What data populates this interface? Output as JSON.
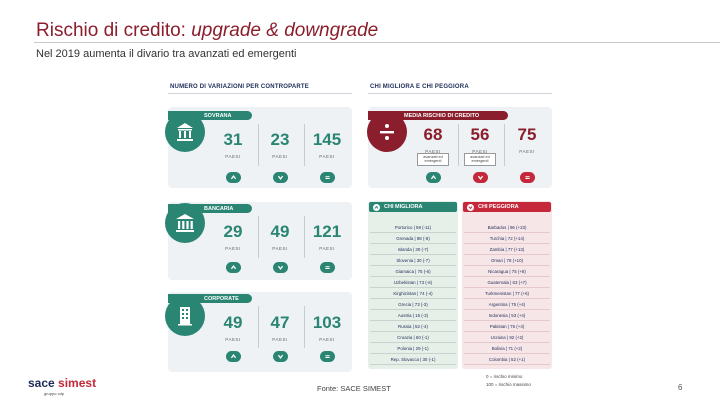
{
  "header": {
    "title_main": "Rischio di credito: ",
    "title_italic": "upgrade & downgrade",
    "subtitle": "Nel 2019 aumenta il divario tra avanzati ed emergenti"
  },
  "colors": {
    "brand_red": "#8b1e2c",
    "teal": "#2a8573",
    "navy": "#1c2b57",
    "panel": "#eef2f5"
  },
  "left_section": {
    "heading": "NUMERO DI VARIAZIONI PER CONTROPARTE",
    "cards": [
      {
        "label": "SOVRANA",
        "icon": "government-building-icon",
        "stats": [
          {
            "value": "31",
            "label": "PAESI",
            "badge": "up"
          },
          {
            "value": "23",
            "label": "PAESI",
            "badge": "down"
          },
          {
            "value": "145",
            "label": "PAESI",
            "badge": "equal"
          }
        ]
      },
      {
        "label": "BANCARIA",
        "icon": "bank-icon",
        "stats": [
          {
            "value": "29",
            "label": "PAESI",
            "badge": "up"
          },
          {
            "value": "49",
            "label": "PAESI",
            "badge": "down"
          },
          {
            "value": "121",
            "label": "PAESI",
            "badge": "equal"
          }
        ]
      },
      {
        "label": "CORPORATE",
        "icon": "office-building-icon",
        "stats": [
          {
            "value": "49",
            "label": "PAESI",
            "badge": "up"
          },
          {
            "value": "47",
            "label": "PAESI",
            "badge": "down"
          },
          {
            "value": "103",
            "label": "PAESI",
            "badge": "equal"
          }
        ]
      }
    ]
  },
  "right_section": {
    "heading": "CHI MIGLIORA E CHI PEGGIORA",
    "media": {
      "label": "MEDIA RISCHIO DI CREDITO",
      "icon": "divide-icon",
      "stats": [
        {
          "value": "68",
          "label": "PAESI",
          "note": "avanzati ed emergenti",
          "badge": "up"
        },
        {
          "value": "56",
          "label": "PAESI",
          "note": "avanzati ed emergenti",
          "badge": "down"
        },
        {
          "value": "75",
          "label": "PAESI",
          "badge": "equal"
        }
      ]
    },
    "improvers": {
      "heading": "CHI MIGLIORA",
      "items": [
        "Portorico | 59 (-11)",
        "Grenada | 88 (-8)",
        "Islanda | 30 (-7)",
        "Slovenia | 30 (-7)",
        "Giamaica | 75 (-6)",
        "Uzbekistan | 73 (-6)",
        "Kirghizistan | 74 (-4)",
        "Grecia | 73 (-3)",
        "Austria | 15 (-3)",
        "Russia | 52 (-4)",
        "Croazia | 60 (-1)",
        "Polonia | 29 (-1)",
        "Rep. Slovacca | 30 (-1)"
      ]
    },
    "worseners": {
      "heading": "CHI PEGGIORA",
      "items": [
        "Barbados | 96 (+23)",
        "Turchia | 72 (+14)",
        "Zambia | 77 (+13)",
        "Oman | 78 (+10)",
        "Nicaragua | 75 (+8)",
        "Guatemala | 63 (+7)",
        "Turkmenistan | 77 (+6)",
        "Argentina | 75 (+4)",
        "Indonesia | 53 (+4)",
        "Pakistan | 76 (+4)",
        "Ucraina | 92 (+2)",
        "Bolivia | 71 (+2)",
        "Colombia | 52 (+1)"
      ]
    }
  },
  "footer": {
    "logo_main": "sace",
    "logo_r": "simest",
    "tagline": "gruppo cdp",
    "source": "Fonte: SACE SIMEST",
    "legend_line1": "0 = rischio minimo",
    "legend_line2": "100 = rischio massimo",
    "page": "6"
  }
}
